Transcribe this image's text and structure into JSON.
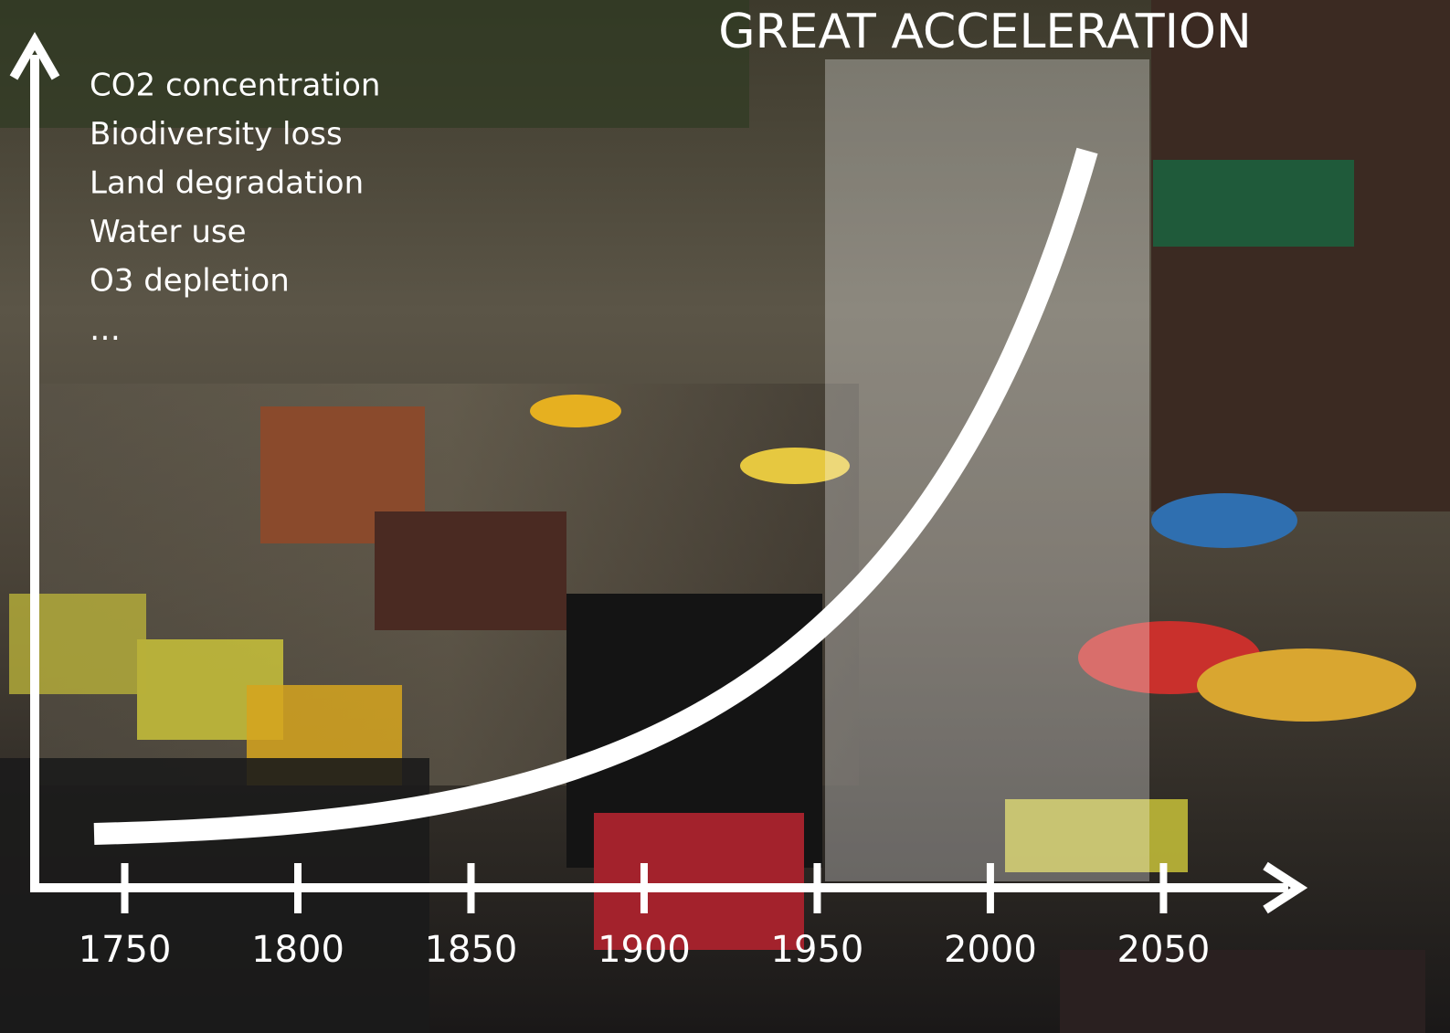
{
  "chart_data": {
    "type": "line",
    "title": "GREAT ACCELERATION",
    "y_labels": [
      "CO2 concentration",
      "Biodiversity loss",
      "Land degradation",
      "Water use",
      "O3 depletion",
      "…"
    ],
    "xlim": [
      1724,
      2090
    ],
    "xticks": [
      1750,
      1800,
      1850,
      1900,
      1950,
      2000,
      2050
    ]
  }
}
